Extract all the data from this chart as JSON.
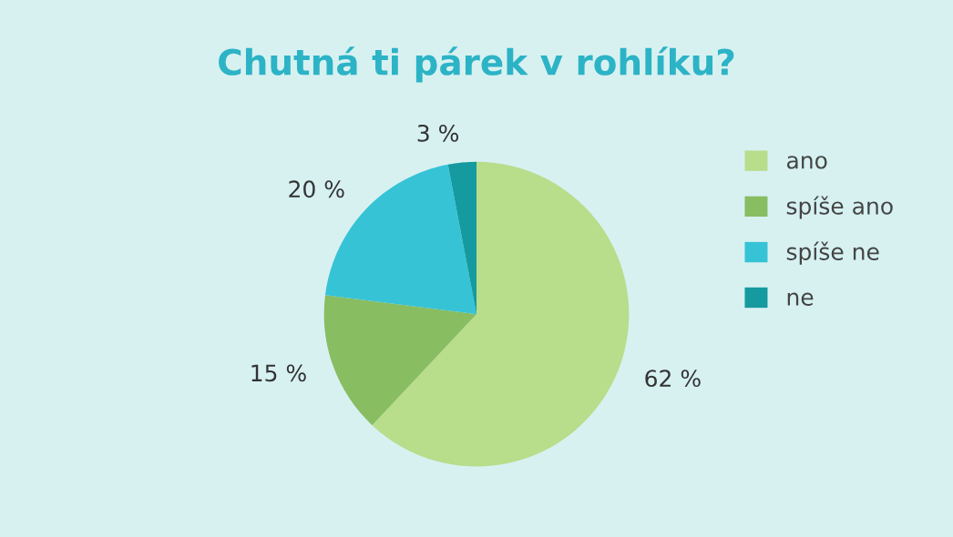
{
  "chart_data": {
    "type": "pie",
    "title": "Chutná ti párek v rohlíku?",
    "categories": [
      "ano",
      "spíše ano",
      "spíše ne",
      "ne"
    ],
    "values": [
      62,
      15,
      20,
      3
    ],
    "value_labels": [
      "62 %",
      "15 %",
      "20 %",
      "3 %"
    ],
    "colors": [
      "#b8dd8b",
      "#88bd62",
      "#36c3d6",
      "#149a9f"
    ],
    "legend": "right"
  }
}
